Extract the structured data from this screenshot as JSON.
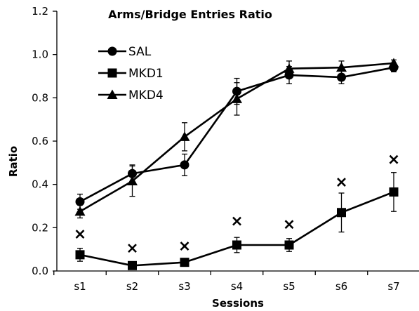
{
  "chart_data": {
    "type": "line",
    "title": "Arms/Bridge Entries Ratio",
    "xlabel": "Sessions",
    "ylabel": "Ratio",
    "categories": [
      "s1",
      "s2",
      "s3",
      "s4",
      "s5",
      "s6",
      "s7"
    ],
    "ylim": [
      0,
      1.2
    ],
    "yticks": [
      "0.0",
      "0.2",
      "0.4",
      "0.6",
      "0.8",
      "1.0",
      "1.2"
    ],
    "grid": false,
    "legend_position": "top-left",
    "series": [
      {
        "name": "SAL",
        "marker": "circle",
        "values": [
          0.32,
          0.45,
          0.49,
          0.83,
          0.905,
          0.895,
          0.94
        ],
        "errors": [
          0.035,
          0.04,
          0.05,
          0.06,
          0.04,
          0.03,
          0.02
        ]
      },
      {
        "name": "MKD1",
        "marker": "square",
        "values": [
          0.075,
          0.025,
          0.04,
          0.12,
          0.12,
          0.27,
          0.365
        ],
        "errors": [
          0.03,
          0.015,
          0.015,
          0.035,
          0.03,
          0.09,
          0.09
        ]
      },
      {
        "name": "MKD4",
        "marker": "triangle",
        "values": [
          0.275,
          0.415,
          0.62,
          0.795,
          0.935,
          0.94,
          0.96
        ],
        "errors": [
          0.03,
          0.07,
          0.065,
          0.075,
          0.035,
          0.03,
          0.015
        ]
      }
    ],
    "annotations": {
      "marker": "×",
      "values": [
        0.17,
        0.105,
        0.115,
        0.23,
        0.215,
        0.41,
        0.515
      ]
    }
  }
}
